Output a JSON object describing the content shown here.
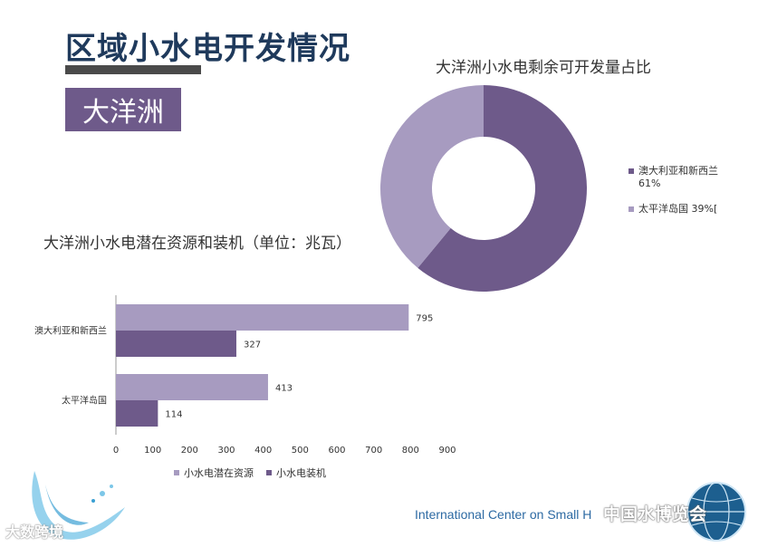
{
  "page": {
    "title": "区域小水电开发情况",
    "region_badge": "大洋洲",
    "footer_text": "International Center on Small H",
    "watermark_left": "大数跨境",
    "watermark_right": "中国水博览会"
  },
  "colors": {
    "dark_purple": "#6e5a8a",
    "light_purple": "#a79bc0",
    "title_blue": "#1f3a5c",
    "footer_blue": "#2d6aa3"
  },
  "chart_data": [
    {
      "type": "pie",
      "title": "大洋洲小水电剩余可开发量占比",
      "donut": true,
      "slices": [
        {
          "label": "澳大利亚和新西兰",
          "value": 61,
          "display": "61%",
          "color": "#6e5a8a"
        },
        {
          "label": "太平洋岛国",
          "value": 39,
          "display": "39%[",
          "color": "#a79bc0"
        }
      ],
      "legend": "right"
    },
    {
      "type": "bar",
      "orientation": "horizontal",
      "title": "大洋洲小水电潜在资源和装机（单位：兆瓦）",
      "categories": [
        "澳大利亚和新西兰",
        "太平洋岛国"
      ],
      "series": [
        {
          "name": "小水电潜在资源",
          "values": [
            795,
            413
          ],
          "color": "#a79bc0"
        },
        {
          "name": "小水电装机",
          "values": [
            327,
            114
          ],
          "color": "#6e5a8a"
        }
      ],
      "xlim": [
        0,
        900
      ],
      "xticks": [
        0,
        100,
        200,
        300,
        400,
        500,
        600,
        700,
        800,
        900
      ],
      "legend": "bottom"
    }
  ]
}
